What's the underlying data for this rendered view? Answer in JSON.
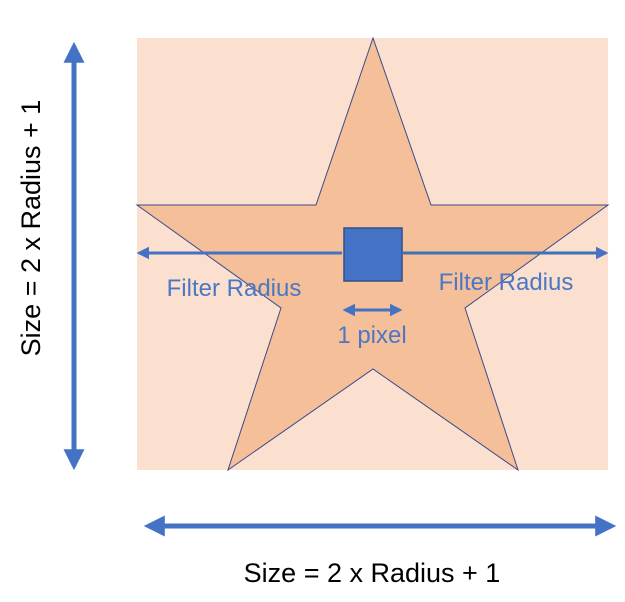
{
  "labels": {
    "filter_radius_left": "Filter Radius",
    "filter_radius_right": "Filter Radius",
    "one_pixel": "1 pixel",
    "size_vertical": "Size = 2 x Radius + 1",
    "size_horizontal": "Size = 2 x Radius + 1"
  },
  "colors": {
    "background": "#ffffff",
    "square_fill": "#fbe0d0",
    "star_fill": "#f5bf99",
    "star_stroke": "#3b4a8a",
    "pixel_fill": "#4472c4",
    "pixel_stroke": "#2f4f8f",
    "arrow": "#4472c4",
    "filter_text": "#4a78c4",
    "caption_text": "#000000"
  }
}
